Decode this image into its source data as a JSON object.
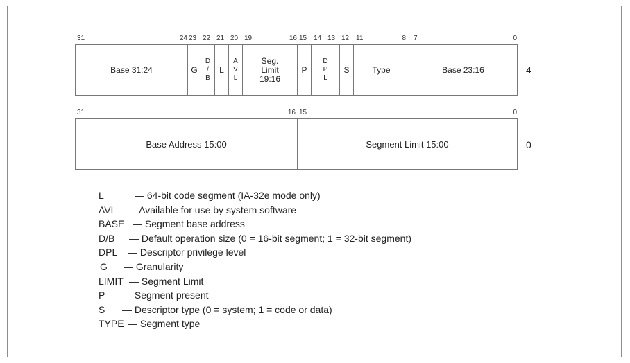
{
  "descriptor_top": {
    "bit_numbers": [
      "31",
      "24",
      "23",
      "22",
      "21",
      "20",
      "19",
      "16",
      "15",
      "14",
      "13",
      "12",
      "11",
      "8",
      "7",
      "0"
    ],
    "fields": [
      {
        "key": "base_31_24",
        "label": "Base 31:24"
      },
      {
        "key": "g",
        "label": "G"
      },
      {
        "key": "db",
        "label": "D\n/\nB"
      },
      {
        "key": "l",
        "label": "L"
      },
      {
        "key": "avl",
        "label": "A\nV\nL"
      },
      {
        "key": "seg_limit",
        "label": "Seg.\nLimit\n19:16"
      },
      {
        "key": "p",
        "label": "P"
      },
      {
        "key": "dpl",
        "label": "D\nP\nL"
      },
      {
        "key": "s",
        "label": "S"
      },
      {
        "key": "type",
        "label": "Type"
      },
      {
        "key": "base_23_16",
        "label": "Base 23:16"
      }
    ],
    "offset": "4"
  },
  "descriptor_bottom": {
    "bit_numbers": [
      "31",
      "16",
      "15",
      "0"
    ],
    "fields": [
      {
        "key": "base_address",
        "label": "Base Address 15:00"
      },
      {
        "key": "segment_limit",
        "label": "Segment Limit 15:00"
      }
    ],
    "offset": "0"
  },
  "legend": [
    {
      "term": "L",
      "desc": "— 64-bit code segment (IA-32e mode only)"
    },
    {
      "term": "AVL",
      "desc": "— Available for use by system software"
    },
    {
      "term": "BASE",
      "desc": "— Segment base address"
    },
    {
      "term": "D/B",
      "desc": "— Default operation size (0 = 16-bit segment; 1 = 32-bit segment)"
    },
    {
      "term": "DPL",
      "desc": "— Descriptor privilege level"
    },
    {
      "term": "G",
      "desc": "— Granularity"
    },
    {
      "term": "LIMIT",
      "desc": "— Segment Limit"
    },
    {
      "term": "P",
      "desc": "— Segment present"
    },
    {
      "term": "S",
      "desc": "— Descriptor type (0 = system; 1 = code or data)"
    },
    {
      "term": "TYPE",
      "desc": "— Segment type"
    }
  ]
}
